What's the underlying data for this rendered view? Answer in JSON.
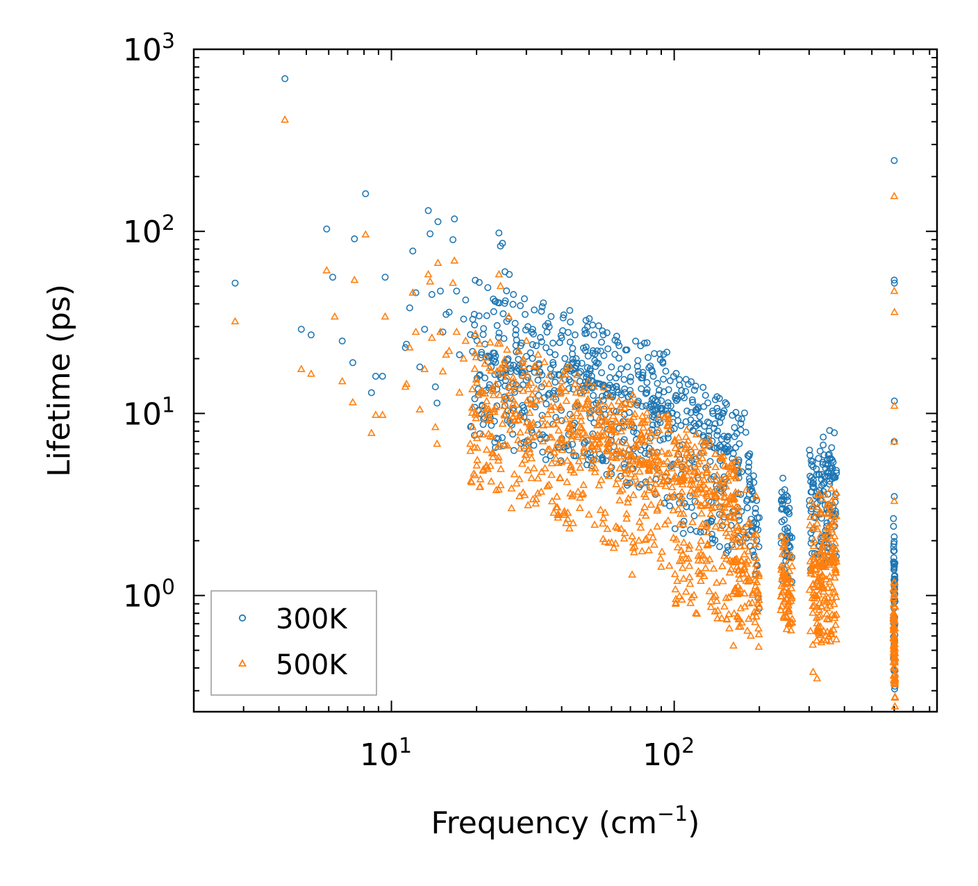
{
  "chart_data": {
    "type": "scatter",
    "title": "",
    "xlabel": "Frequency (cm",
    "xlabel_sup": "−1",
    "xlabel_tail": ")",
    "ylabel": "Lifetime (ps)",
    "xscale": "log",
    "yscale": "log",
    "xlim": [
      2.0,
      850
    ],
    "ylim": [
      0.23,
      1000
    ],
    "x_ticks": [
      {
        "value": 10,
        "base": "10",
        "exp": "1"
      },
      {
        "value": 100,
        "base": "10",
        "exp": "2"
      }
    ],
    "y_ticks": [
      {
        "value": 1,
        "base": "10",
        "exp": "0"
      },
      {
        "value": 10,
        "base": "10",
        "exp": "1"
      },
      {
        "value": 100,
        "base": "10",
        "exp": "2"
      },
      {
        "value": 1000,
        "base": "10",
        "exp": "3"
      }
    ],
    "legend_position": "bottom-left",
    "series": [
      {
        "name": "300K",
        "marker": "circle",
        "color": "#1f77b4",
        "points": [
          [
            2.8,
            52
          ],
          [
            4.2,
            690
          ],
          [
            4.8,
            29
          ],
          [
            5.2,
            27
          ],
          [
            5.9,
            103
          ],
          [
            6.2,
            56
          ],
          [
            6.7,
            25
          ],
          [
            7.3,
            19
          ],
          [
            7.4,
            91
          ],
          [
            8.1,
            161
          ],
          [
            8.5,
            13
          ],
          [
            8.8,
            16
          ],
          [
            9.3,
            16
          ],
          [
            9.5,
            56
          ],
          [
            11.2,
            23
          ],
          [
            11.3,
            24
          ],
          [
            11.6,
            38
          ],
          [
            11.9,
            78
          ],
          [
            12.2,
            46
          ],
          [
            12.6,
            18
          ],
          [
            13.1,
            29
          ],
          [
            13.5,
            130
          ],
          [
            13.7,
            97
          ],
          [
            13.9,
            45
          ],
          [
            14.3,
            14
          ],
          [
            14.5,
            11.4
          ],
          [
            14.6,
            113
          ],
          [
            14.9,
            47
          ],
          [
            15.2,
            28
          ],
          [
            15.6,
            35
          ],
          [
            16.0,
            36
          ],
          [
            16.5,
            90
          ],
          [
            16.7,
            117
          ],
          [
            17.0,
            47
          ],
          [
            17.4,
            21
          ],
          [
            18.0,
            33
          ],
          [
            18.3,
            42
          ],
          [
            24.0,
            98
          ],
          [
            24.3,
            83
          ],
          [
            24.7,
            86
          ],
          [
            25.2,
            60
          ],
          [
            26.1,
            58
          ],
          [
            27.0,
            45
          ],
          [
            29.7,
            35
          ],
          [
            32.0,
            37
          ],
          [
            35.5,
            28
          ],
          [
            40.0,
            26
          ],
          [
            45.0,
            20
          ],
          [
            52.0,
            27
          ],
          [
            55.0,
            22
          ],
          [
            60.0,
            18
          ],
          [
            70.0,
            15
          ],
          [
            80.0,
            13
          ],
          [
            95.0,
            11
          ],
          [
            110.0,
            9
          ],
          [
            120.0,
            10.5
          ],
          [
            128.0,
            8.5
          ],
          [
            137.0,
            10
          ],
          [
            150.0,
            7.5
          ],
          [
            165.0,
            6.5
          ],
          [
            185.0,
            6
          ],
          [
            240.0,
            3.3
          ],
          [
            245.0,
            2.6
          ],
          [
            250.0,
            2.1
          ],
          [
            305.0,
            5.5
          ],
          [
            310.0,
            5.1
          ],
          [
            320.0,
            3.7
          ],
          [
            340.0,
            4.5
          ],
          [
            355.0,
            5
          ],
          [
            365.0,
            5.4
          ],
          [
            600.0,
            245
          ],
          [
            600.0,
            54
          ],
          [
            601.0,
            52
          ],
          [
            600.5,
            11.7
          ],
          [
            600.0,
            7
          ],
          [
            600.2,
            3.5
          ],
          [
            600.0,
            2.1
          ]
        ]
      },
      {
        "name": "500K",
        "marker": "triangle",
        "color": "#ff7f0e",
        "points": [
          [
            2.8,
            32
          ],
          [
            4.2,
            410
          ],
          [
            4.8,
            17.5
          ],
          [
            5.2,
            16.5
          ],
          [
            5.9,
            61
          ],
          [
            6.3,
            34
          ],
          [
            6.7,
            15
          ],
          [
            7.3,
            11.5
          ],
          [
            7.4,
            54
          ],
          [
            8.1,
            96
          ],
          [
            8.5,
            7.8
          ],
          [
            8.8,
            9.8
          ],
          [
            9.3,
            9.8
          ],
          [
            9.5,
            34
          ],
          [
            11.2,
            14
          ],
          [
            11.3,
            14.5
          ],
          [
            11.6,
            23
          ],
          [
            11.9,
            46
          ],
          [
            12.2,
            28
          ],
          [
            12.6,
            10.5
          ],
          [
            13.1,
            17.5
          ],
          [
            13.5,
            58
          ],
          [
            13.7,
            53
          ],
          [
            13.9,
            26
          ],
          [
            14.3,
            8.4
          ],
          [
            14.5,
            6.8
          ],
          [
            14.6,
            67
          ],
          [
            14.9,
            28
          ],
          [
            15.2,
            17
          ],
          [
            15.6,
            21
          ],
          [
            16.0,
            22
          ],
          [
            16.5,
            52
          ],
          [
            16.7,
            69
          ],
          [
            17.0,
            28
          ],
          [
            17.4,
            13
          ],
          [
            18.0,
            20
          ],
          [
            18.3,
            25
          ],
          [
            19.0,
            6.8
          ],
          [
            24.0,
            58
          ],
          [
            24.3,
            50
          ],
          [
            26.0,
            34
          ],
          [
            30.0,
            25
          ],
          [
            33.0,
            21
          ],
          [
            40.0,
            15
          ],
          [
            45.0,
            13
          ],
          [
            52.0,
            14
          ],
          [
            60.0,
            11
          ],
          [
            70.0,
            9
          ],
          [
            80.0,
            7.5
          ],
          [
            92.0,
            9.5
          ],
          [
            100.0,
            7
          ],
          [
            110.0,
            6.5
          ],
          [
            125.0,
            7
          ],
          [
            140.0,
            6
          ],
          [
            165.0,
            4.5
          ],
          [
            180.0,
            3.8
          ],
          [
            195.0,
            3.5
          ],
          [
            71.0,
            1.3
          ],
          [
            75.0,
            2.0
          ],
          [
            85.0,
            1.9
          ],
          [
            110.0,
            1.6
          ],
          [
            140.0,
            1.0
          ],
          [
            162.0,
            0.53
          ],
          [
            172.0,
            0.85
          ],
          [
            196.0,
            0.82
          ],
          [
            245.0,
            1.9
          ],
          [
            250.0,
            0.95
          ],
          [
            310.0,
            0.38
          ],
          [
            320.0,
            0.35
          ],
          [
            350.0,
            2.8
          ],
          [
            365.0,
            3.2
          ],
          [
            600.0,
            156
          ],
          [
            600.0,
            47
          ],
          [
            601.0,
            36
          ],
          [
            600.5,
            11
          ],
          [
            600.0,
            7
          ],
          [
            600.2,
            3.3
          ],
          [
            600.0,
            0.33
          ]
        ]
      }
    ],
    "dense_regions": [
      {
        "series": 0,
        "seed": 101,
        "x": [
          19,
          40
        ],
        "line": [
          22,
          15
        ],
        "down": 0.5,
        "up": 0.4,
        "n": 230
      },
      {
        "series": 0,
        "seed": 102,
        "x": [
          40,
          100
        ],
        "line": [
          18,
          9.5
        ],
        "down": 0.5,
        "up": 0.35,
        "n": 320
      },
      {
        "series": 0,
        "seed": 103,
        "x": [
          100,
          180
        ],
        "line": [
          9,
          5.5
        ],
        "down": 0.6,
        "up": 0.28,
        "n": 200
      },
      {
        "series": 0,
        "seed": 104,
        "x": [
          180,
          200
        ],
        "line": [
          5.5,
          1.8
        ],
        "down": 0.35,
        "up": 0.2,
        "n": 45
      },
      {
        "series": 0,
        "seed": 105,
        "x": [
          238,
          262
        ],
        "line": [
          2.8,
          1.6
        ],
        "down": 0.35,
        "up": 0.25,
        "n": 50
      },
      {
        "series": 0,
        "seed": 106,
        "x": [
          300,
          375
        ],
        "line": [
          3.8,
          4.5
        ],
        "down": 0.45,
        "up": 0.28,
        "n": 130
      },
      {
        "series": 0,
        "seed": 107,
        "x": [
          596,
          604
        ],
        "line": [
          1.8,
          0.9
        ],
        "down": 0.6,
        "up": 0.2,
        "n": 60
      },
      {
        "series": 1,
        "seed": 201,
        "x": [
          19,
          40
        ],
        "line": [
          11.5,
          7.5
        ],
        "down": 0.5,
        "up": 0.4,
        "n": 230
      },
      {
        "series": 1,
        "seed": 202,
        "x": [
          40,
          100
        ],
        "line": [
          8.5,
          4.5
        ],
        "down": 0.55,
        "up": 0.35,
        "n": 340
      },
      {
        "series": 1,
        "seed": 203,
        "x": [
          100,
          170
        ],
        "line": [
          4.5,
          3.0
        ],
        "down": 0.7,
        "up": 0.3,
        "n": 260
      },
      {
        "series": 1,
        "seed": 204,
        "x": [
          160,
          200
        ],
        "line": [
          1.6,
          1.1
        ],
        "down": 0.35,
        "up": 0.35,
        "n": 90
      },
      {
        "series": 1,
        "seed": 205,
        "x": [
          238,
          262
        ],
        "line": [
          1.4,
          0.95
        ],
        "down": 0.25,
        "up": 0.25,
        "n": 70
      },
      {
        "series": 1,
        "seed": 206,
        "x": [
          300,
          375
        ],
        "line": [
          1.4,
          1.6
        ],
        "down": 0.45,
        "up": 0.4,
        "n": 200
      },
      {
        "series": 1,
        "seed": 207,
        "x": [
          596,
          604
        ],
        "line": [
          0.8,
          0.45
        ],
        "down": 0.3,
        "up": 0.3,
        "n": 90
      }
    ]
  }
}
